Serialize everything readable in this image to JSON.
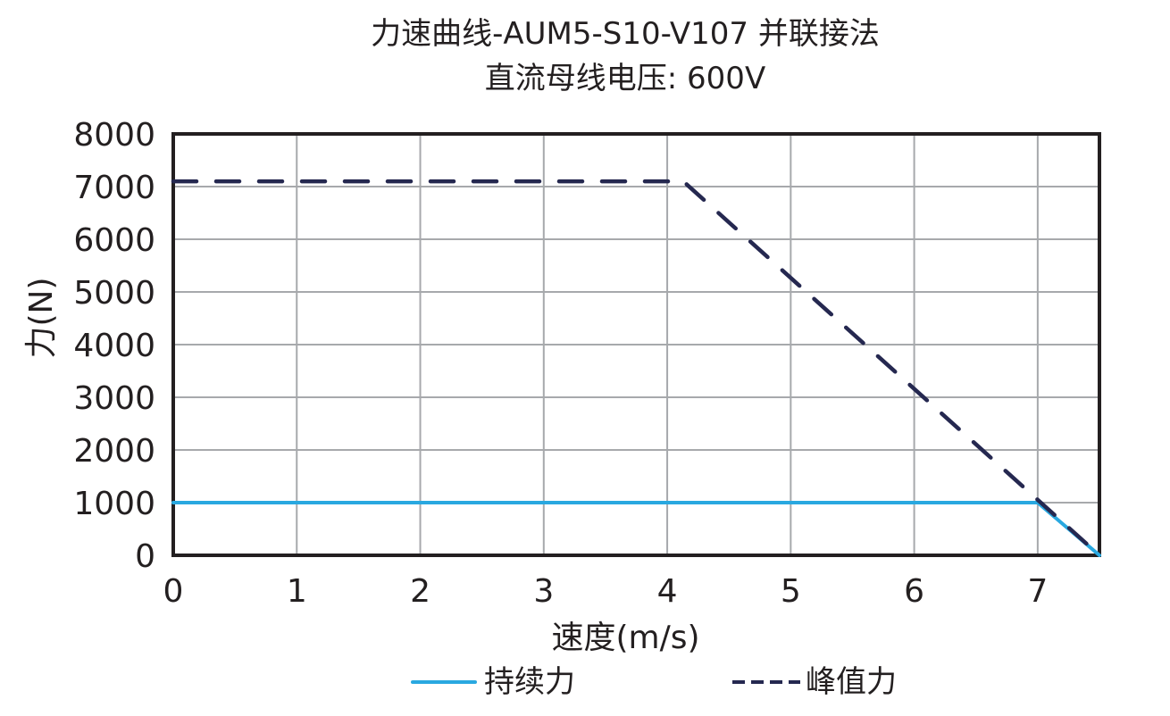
{
  "chart_data": {
    "type": "line",
    "title": "力速曲线-AUM5-S10-V107 并联接法",
    "subtitle": "直流母线电压: 600V",
    "xlabel": "速度(m/s)",
    "ylabel": "力(N)",
    "xlim": [
      0,
      7.5
    ],
    "ylim": [
      0,
      8000
    ],
    "xticks": [
      0,
      1,
      2,
      3,
      4,
      5,
      6,
      7
    ],
    "yticks": [
      0,
      1000,
      2000,
      3000,
      4000,
      5000,
      6000,
      7000,
      8000
    ],
    "grid": true,
    "legend_position": "bottom",
    "series": [
      {
        "name": "持续力",
        "style": "solid",
        "color": "#29a8e0",
        "x": [
          0,
          7.0,
          7.5
        ],
        "y": [
          1000,
          1000,
          0
        ]
      },
      {
        "name": "峰值力",
        "style": "dashed",
        "color": "#252850",
        "x": [
          0,
          4.13,
          7.5
        ],
        "y": [
          7100,
          7100,
          0
        ]
      }
    ]
  },
  "labels": {
    "title": "力速曲线-AUM5-S10-V107 并联接法",
    "subtitle": "直流母线电压: 600V",
    "xlabel": "速度(m/s)",
    "ylabel": "力(N)",
    "legend_continuous": "持续力",
    "legend_peak": "峰值力"
  }
}
